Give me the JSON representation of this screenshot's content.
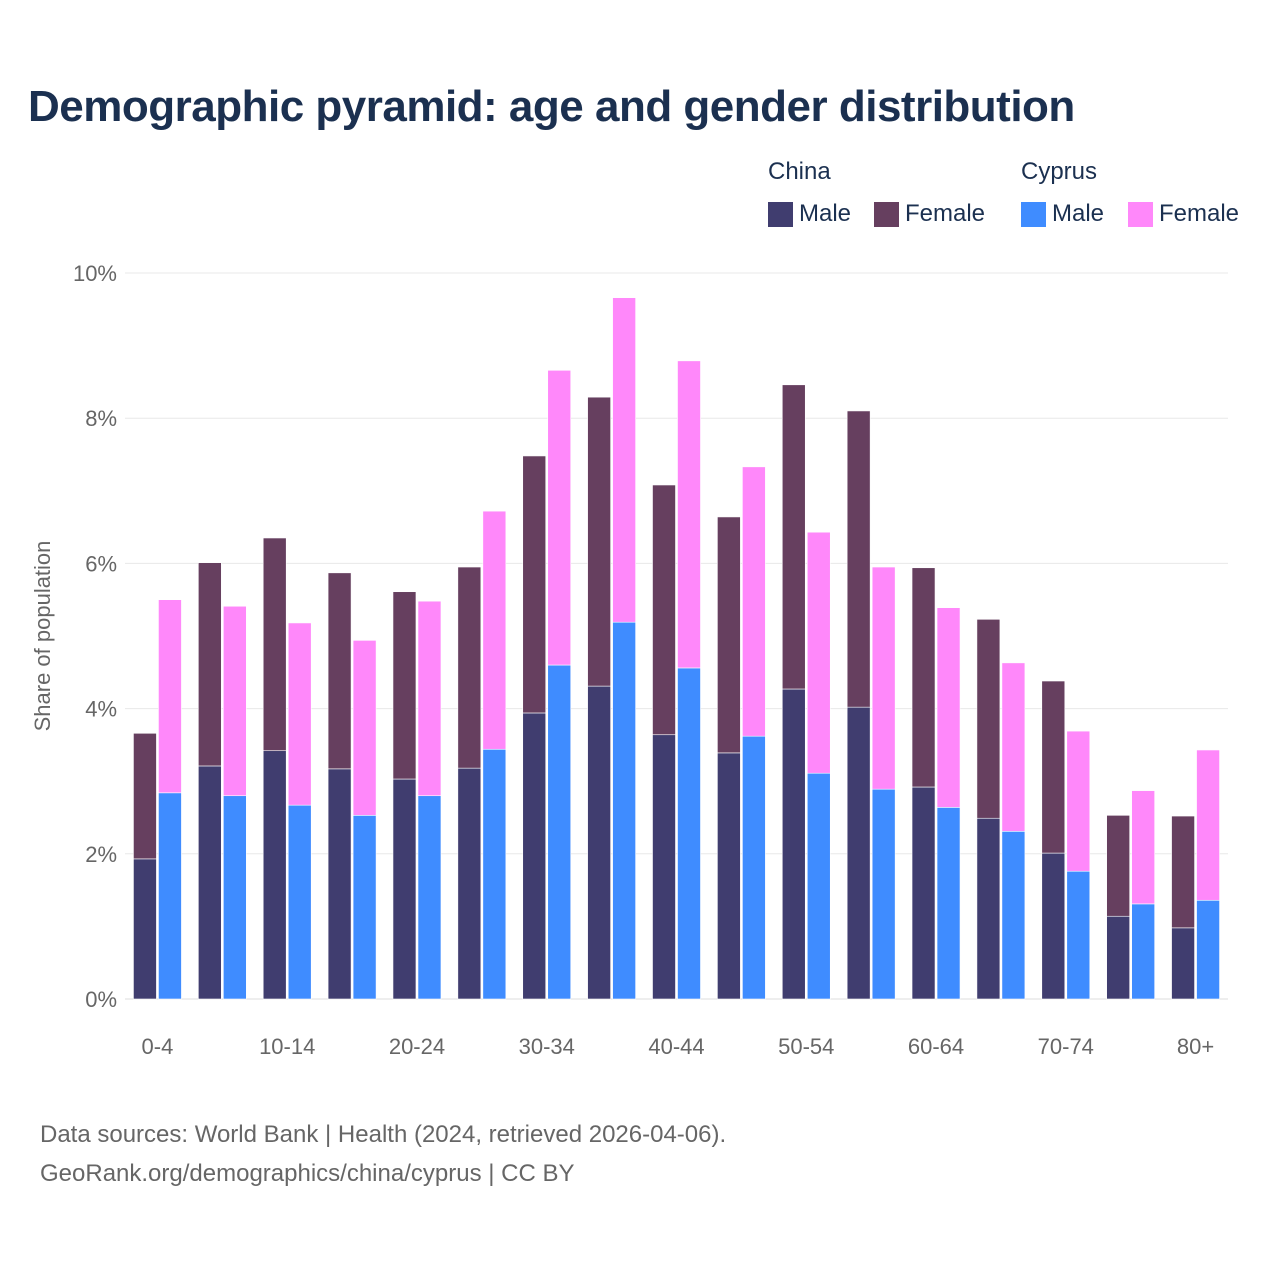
{
  "chart_data": {
    "type": "bar",
    "title": "Demographic pyramid: age and gender distribution",
    "ylabel": "Share of population",
    "xlabel": "",
    "ylim": [
      0,
      10
    ],
    "yticks": [
      "0%",
      "2%",
      "4%",
      "6%",
      "8%",
      "10%"
    ],
    "ytick_values": [
      0,
      2,
      4,
      6,
      8,
      10
    ],
    "grid": true,
    "legend_placement": "top-right",
    "stacked": true,
    "categories": [
      "0-4",
      "5-9",
      "10-14",
      "15-19",
      "20-24",
      "25-29",
      "30-34",
      "35-39",
      "40-44",
      "45-49",
      "50-54",
      "55-59",
      "60-64",
      "65-69",
      "70-74",
      "75-79",
      "80+"
    ],
    "xtick_labels": [
      "0-4",
      "10-14",
      "20-24",
      "30-34",
      "40-44",
      "50-54",
      "60-64",
      "70-74",
      "80+"
    ],
    "groups": [
      {
        "name": "China",
        "series": [
          {
            "name": "Male",
            "color": "#403d6f",
            "values": [
              1.93,
              3.21,
              3.42,
              3.17,
              3.03,
              3.18,
              3.94,
              4.31,
              3.64,
              3.39,
              4.27,
              4.02,
              2.92,
              2.49,
              2.01,
              1.14,
              0.98
            ]
          },
          {
            "name": "Female",
            "color": "#663f5f",
            "values": [
              1.73,
              2.8,
              2.93,
              2.7,
              2.58,
              2.77,
              3.54,
              3.98,
              3.44,
              3.25,
              4.19,
              4.08,
              3.02,
              2.74,
              2.37,
              1.39,
              1.54
            ]
          }
        ]
      },
      {
        "name": "Cyprus",
        "series": [
          {
            "name": "Male",
            "color": "#3f8cff",
            "values": [
              2.84,
              2.8,
              2.67,
              2.53,
              2.8,
              3.44,
              4.6,
              5.19,
              4.56,
              3.62,
              3.11,
              2.89,
              2.64,
              2.31,
              1.76,
              1.31,
              1.36
            ]
          },
          {
            "name": "Female",
            "color": "#ff88fa",
            "values": [
              2.66,
              2.61,
              2.51,
              2.41,
              2.68,
              3.28,
              4.06,
              4.47,
              4.23,
              3.71,
              3.32,
              3.06,
              2.75,
              2.32,
              1.93,
              1.56,
              2.07
            ]
          }
        ]
      }
    ]
  },
  "footer": {
    "line1": "Data sources: World Bank | Health (2024, retrieved 2026-04-06).",
    "line2": "GeoRank.org/demographics/china/cyprus | CC BY"
  }
}
